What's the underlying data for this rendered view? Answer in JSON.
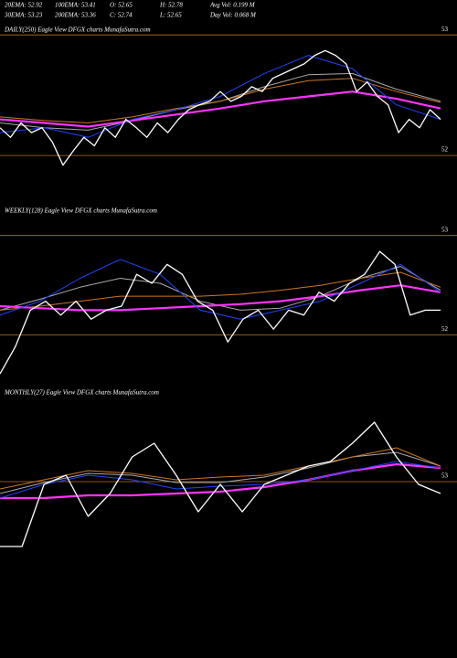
{
  "header": {
    "row1": [
      "20EMA: 52.92",
      "100EMA: 53.41",
      "O: 52.65",
      "H: 52.78",
      "Avg Vol: 0.199 M"
    ],
    "row2": [
      "30EMA: 53.23",
      "200EMA: 53.36",
      "C: 52.74",
      "L: 52.65",
      "Day Vol: 0.068 M"
    ]
  },
  "chart_data": [
    {
      "type": "line",
      "title": "DAILY(250) Eagle  View  DFGX  charts MunafaSutra.com",
      "ylim": [
        51.66,
        53.1
      ],
      "yticks": [
        52,
        53
      ],
      "grid": true,
      "grid_color": "#b8741a",
      "series": [
        {
          "color": "#aaaaaa",
          "values": [
            52.27,
            52.23,
            52.21,
            52.29,
            52.38,
            52.45,
            52.57,
            52.67,
            52.68,
            52.55,
            52.45
          ]
        },
        {
          "color": "#cc7722",
          "values": [
            52.32,
            52.29,
            52.27,
            52.32,
            52.39,
            52.45,
            52.55,
            52.62,
            52.64,
            52.53,
            52.44
          ]
        },
        {
          "color": "#ff33ff",
          "values": [
            52.3,
            52.27,
            52.24,
            52.29,
            52.34,
            52.39,
            52.45,
            52.49,
            52.53,
            52.47,
            52.39
          ]
        },
        {
          "color": "#2244ff",
          "values": [
            52.19,
            52.23,
            52.15,
            52.3,
            52.38,
            52.49,
            52.68,
            52.83,
            52.72,
            52.42,
            52.3
          ]
        },
        {
          "color": "#ffffff",
          "values": [
            52.23,
            52.15,
            52.27,
            52.19,
            52.23,
            52.11,
            51.92,
            52.04,
            52.15,
            52.08,
            52.23,
            52.15,
            52.3,
            52.23,
            52.15,
            52.27,
            52.19,
            52.3,
            52.38,
            52.42,
            52.45,
            52.53,
            52.45,
            52.49,
            52.57,
            52.53,
            52.64,
            52.68,
            52.72,
            52.76,
            52.83,
            52.87,
            52.83,
            52.76,
            52.53,
            52.61,
            52.49,
            52.42,
            52.19,
            52.3,
            52.23,
            52.38,
            52.3
          ]
        }
      ]
    },
    {
      "type": "line",
      "title": "WEEKLY(128) Eagle  View  DFGX  charts MunafaSutra.com",
      "ylim": [
        51.51,
        53.3
      ],
      "yticks": [
        52,
        53
      ],
      "grid": true,
      "grid_color": "#b8741a",
      "series": [
        {
          "color": "#aaaaaa",
          "values": [
            52.25,
            52.36,
            52.48,
            52.57,
            52.52,
            52.34,
            52.25,
            52.27,
            52.39,
            52.57,
            52.69,
            52.45
          ]
        },
        {
          "color": "#cc7722",
          "values": [
            52.25,
            52.29,
            52.34,
            52.39,
            52.39,
            52.39,
            52.41,
            52.45,
            52.5,
            52.57,
            52.63,
            52.48
          ]
        },
        {
          "color": "#ff33ff",
          "values": [
            52.29,
            52.27,
            52.25,
            52.25,
            52.27,
            52.29,
            52.31,
            52.34,
            52.39,
            52.45,
            52.5,
            52.43
          ]
        },
        {
          "color": "#2244ff",
          "values": [
            52.2,
            52.34,
            52.57,
            52.76,
            52.61,
            52.25,
            52.16,
            52.25,
            52.34,
            52.52,
            52.71,
            52.43
          ]
        },
        {
          "color": "#ffffff",
          "values": [
            51.61,
            51.88,
            52.25,
            52.34,
            52.2,
            52.34,
            52.16,
            52.25,
            52.29,
            52.61,
            52.52,
            52.71,
            52.61,
            52.34,
            52.25,
            51.93,
            52.16,
            52.25,
            52.06,
            52.25,
            52.2,
            52.43,
            52.34,
            52.52,
            52.61,
            52.84,
            52.71,
            52.2,
            52.25,
            52.25
          ]
        }
      ]
    },
    {
      "type": "line",
      "title": "MONTHLY(27) Eagle  View  DFGX  charts MunafaSutra.com",
      "ylim": [
        51.12,
        54.02
      ],
      "yticks": [
        53
      ],
      "grid": true,
      "grid_color": "#b8741a",
      "series": [
        {
          "color": "#aaaaaa",
          "values": [
            52.87,
            52.99,
            53.09,
            53.07,
            52.99,
            52.99,
            53.05,
            53.15,
            53.27,
            53.32,
            53.17
          ]
        },
        {
          "color": "#cc7722",
          "values": [
            52.92,
            53.02,
            53.12,
            53.09,
            53.02,
            53.05,
            53.07,
            53.17,
            53.27,
            53.37,
            53.17
          ]
        },
        {
          "color": "#ff33ff",
          "values": [
            52.82,
            52.82,
            52.85,
            52.85,
            52.87,
            52.89,
            52.94,
            53.02,
            53.12,
            53.19,
            53.15
          ]
        },
        {
          "color": "#2244ff",
          "values": [
            52.82,
            52.97,
            53.07,
            53.02,
            52.92,
            52.95,
            52.97,
            53.02,
            53.12,
            53.22,
            53.15
          ]
        },
        {
          "color": "#ffffff",
          "values": [
            52.29,
            52.29,
            52.97,
            53.07,
            52.62,
            52.87,
            53.27,
            53.42,
            53.07,
            52.67,
            52.97,
            52.67,
            52.97,
            53.07,
            53.17,
            53.22,
            53.42,
            53.65,
            53.27,
            52.97,
            52.87
          ]
        }
      ]
    }
  ]
}
